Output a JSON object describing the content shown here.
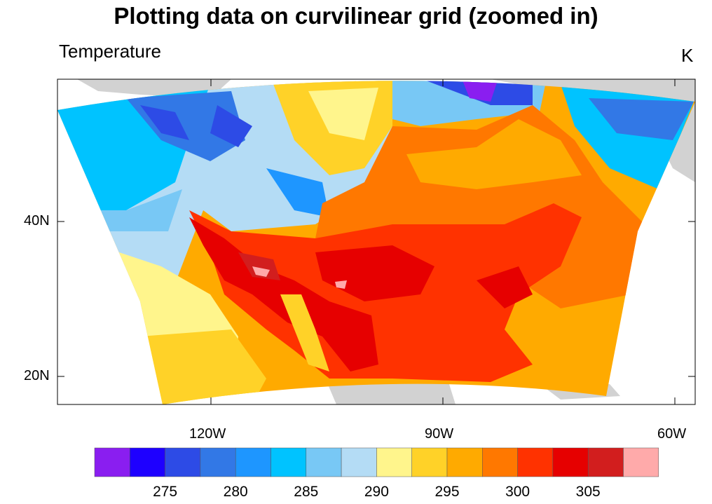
{
  "chart_data": {
    "type": "heatmap",
    "title": "Plotting data on curvilinear grid (zoomed in)",
    "left_string": "Temperature",
    "right_string": "K",
    "lat_ticks": [
      "40N",
      "20N"
    ],
    "lon_ticks": [
      "120W",
      "90W",
      "60W"
    ],
    "colorbar": {
      "levels": [
        272.5,
        275,
        277.5,
        280,
        282.5,
        285,
        287.5,
        290,
        292.5,
        295,
        297.5,
        300,
        302.5,
        305,
        307.5
      ],
      "labels": [
        "275",
        "280",
        "285",
        "290",
        "295",
        "300",
        "305"
      ],
      "colors": [
        "#8a1ef0",
        "#1e00ff",
        "#2d4be6",
        "#3278e6",
        "#1e96ff",
        "#00c3ff",
        "#78c8f5",
        "#b4dcf5",
        "#fff58c",
        "#ffd228",
        "#ffaa00",
        "#ff7800",
        "#ff3200",
        "#e60000",
        "#d21e1e",
        "#ffaaaa"
      ]
    },
    "land_color": "#d2d2d2"
  }
}
